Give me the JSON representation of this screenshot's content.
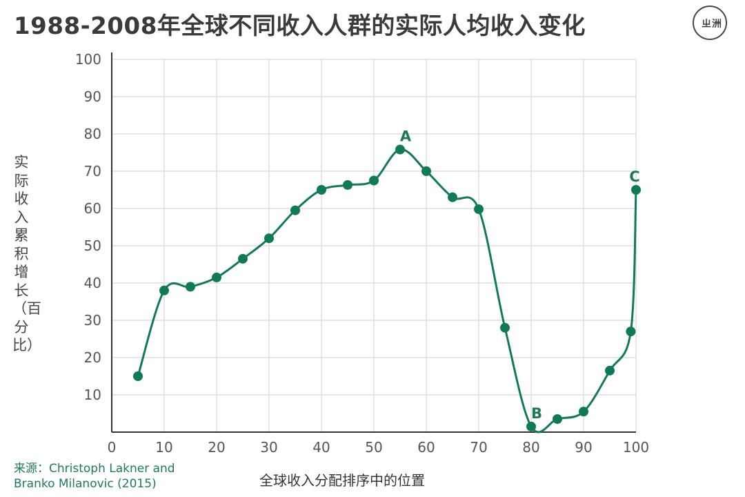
{
  "header": {
    "title": "1988-2008年全球不同收入人群的实际人均收入变化",
    "logo_text": "ㄓ洲"
  },
  "source": {
    "line1": "来源：Christoph Lakner and",
    "line2": "Branko Milanovic (2015)"
  },
  "colors": {
    "series": "#117a55",
    "annotation": "#1e7a55",
    "grid": "#dddddd",
    "axis": "#333333"
  },
  "chart_data": {
    "type": "line",
    "title": "1988-2008年全球不同收入人群的实际人均收入变化",
    "xlabel": "全球收入分配排序中的位置",
    "ylabel": "实际收入累积增长（百分比）",
    "xlim": [
      0,
      100
    ],
    "ylim": [
      0,
      100
    ],
    "x_ticks": [
      0,
      10,
      20,
      30,
      40,
      50,
      60,
      70,
      80,
      90,
      100
    ],
    "y_ticks": [
      10,
      20,
      30,
      40,
      50,
      60,
      70,
      80,
      90,
      100
    ],
    "grid": true,
    "series": [
      {
        "x": [
          5,
          10,
          15,
          20,
          25,
          30,
          35,
          40,
          45,
          50,
          55,
          60,
          65,
          70,
          75,
          80,
          85,
          90,
          95,
          99,
          100
        ],
        "y": [
          15,
          38,
          39,
          41.5,
          46.5,
          52,
          59.5,
          65,
          66.3,
          67.5,
          75.8,
          70,
          63,
          59.8,
          28,
          1.5,
          3.5,
          5.5,
          16.5,
          27,
          65
        ]
      }
    ],
    "annotations": [
      {
        "label": "A",
        "x": 55,
        "y": 75.8
      },
      {
        "label": "B",
        "x": 80,
        "y": 1.5
      },
      {
        "label": "C",
        "x": 100,
        "y": 65
      }
    ]
  }
}
